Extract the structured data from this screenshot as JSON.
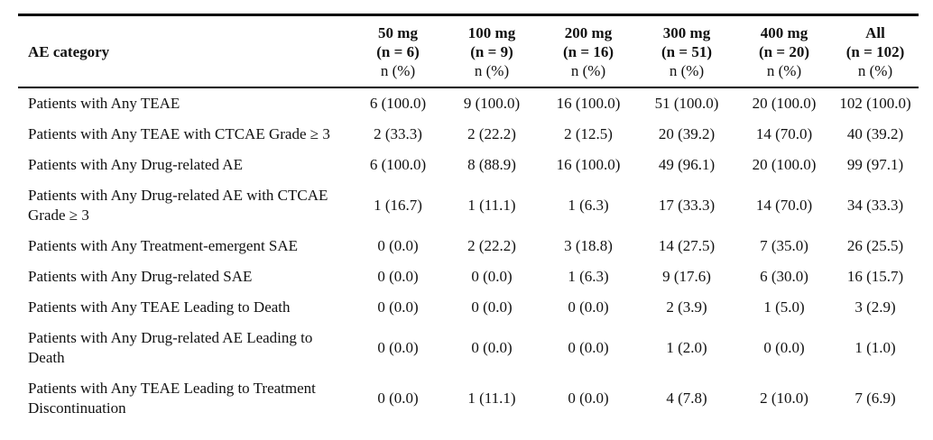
{
  "table": {
    "header": {
      "category_label": "AE category",
      "columns": [
        {
          "dose": "50 mg",
          "n": "(n = 6)",
          "stat": "n (%)"
        },
        {
          "dose": "100 mg",
          "n": "(n = 9)",
          "stat": "n (%)"
        },
        {
          "dose": "200 mg",
          "n": "(n = 16)",
          "stat": "n (%)"
        },
        {
          "dose": "300 mg",
          "n": "(n = 51)",
          "stat": "n (%)"
        },
        {
          "dose": "400 mg",
          "n": "(n = 20)",
          "stat": "n (%)"
        },
        {
          "dose": "All",
          "n": "(n = 102)",
          "stat": "n (%)"
        }
      ]
    },
    "rows": [
      {
        "category": "Patients with Any TEAE",
        "values": [
          "6 (100.0)",
          "9 (100.0)",
          "16 (100.0)",
          "51 (100.0)",
          "20 (100.0)",
          "102 (100.0)"
        ]
      },
      {
        "category": "Patients with Any TEAE with CTCAE Grade ≥ 3",
        "values": [
          "2 (33.3)",
          "2 (22.2)",
          "2 (12.5)",
          "20 (39.2)",
          "14 (70.0)",
          "40 (39.2)"
        ]
      },
      {
        "category": "Patients with Any Drug-related AE",
        "values": [
          "6 (100.0)",
          "8 (88.9)",
          "16 (100.0)",
          "49 (96.1)",
          "20 (100.0)",
          "99 (97.1)"
        ]
      },
      {
        "category": "Patients with Any Drug-related AE with CTCAE Grade ≥ 3",
        "values": [
          "1 (16.7)",
          "1 (11.1)",
          "1 (6.3)",
          "17 (33.3)",
          "14 (70.0)",
          "34 (33.3)"
        ]
      },
      {
        "category": "Patients with Any Treatment-emergent SAE",
        "values": [
          "0 (0.0)",
          "2 (22.2)",
          "3 (18.8)",
          "14 (27.5)",
          "7 (35.0)",
          "26 (25.5)"
        ]
      },
      {
        "category": "Patients with Any Drug-related SAE",
        "values": [
          "0 (0.0)",
          "0 (0.0)",
          "1 (6.3)",
          "9 (17.6)",
          "6 (30.0)",
          "16 (15.7)"
        ]
      },
      {
        "category": "Patients with Any TEAE Leading to Death",
        "values": [
          "0 (0.0)",
          "0 (0.0)",
          "0 (0.0)",
          "2 (3.9)",
          "1 (5.0)",
          "3 (2.9)"
        ]
      },
      {
        "category": "Patients with Any Drug-related AE Leading to Death",
        "values": [
          "0 (0.0)",
          "0 (0.0)",
          "0 (0.0)",
          "1 (2.0)",
          "0 (0.0)",
          "1 (1.0)"
        ]
      },
      {
        "category": "Patients with Any TEAE Leading to Treatment Discontinuation",
        "values": [
          "0 (0.0)",
          "1 (11.1)",
          "0 (0.0)",
          "4 (7.8)",
          "2 (10.0)",
          "7 (6.9)"
        ]
      }
    ]
  },
  "colors": {
    "text": "#111111",
    "rule": "#000000",
    "background": "#ffffff"
  }
}
